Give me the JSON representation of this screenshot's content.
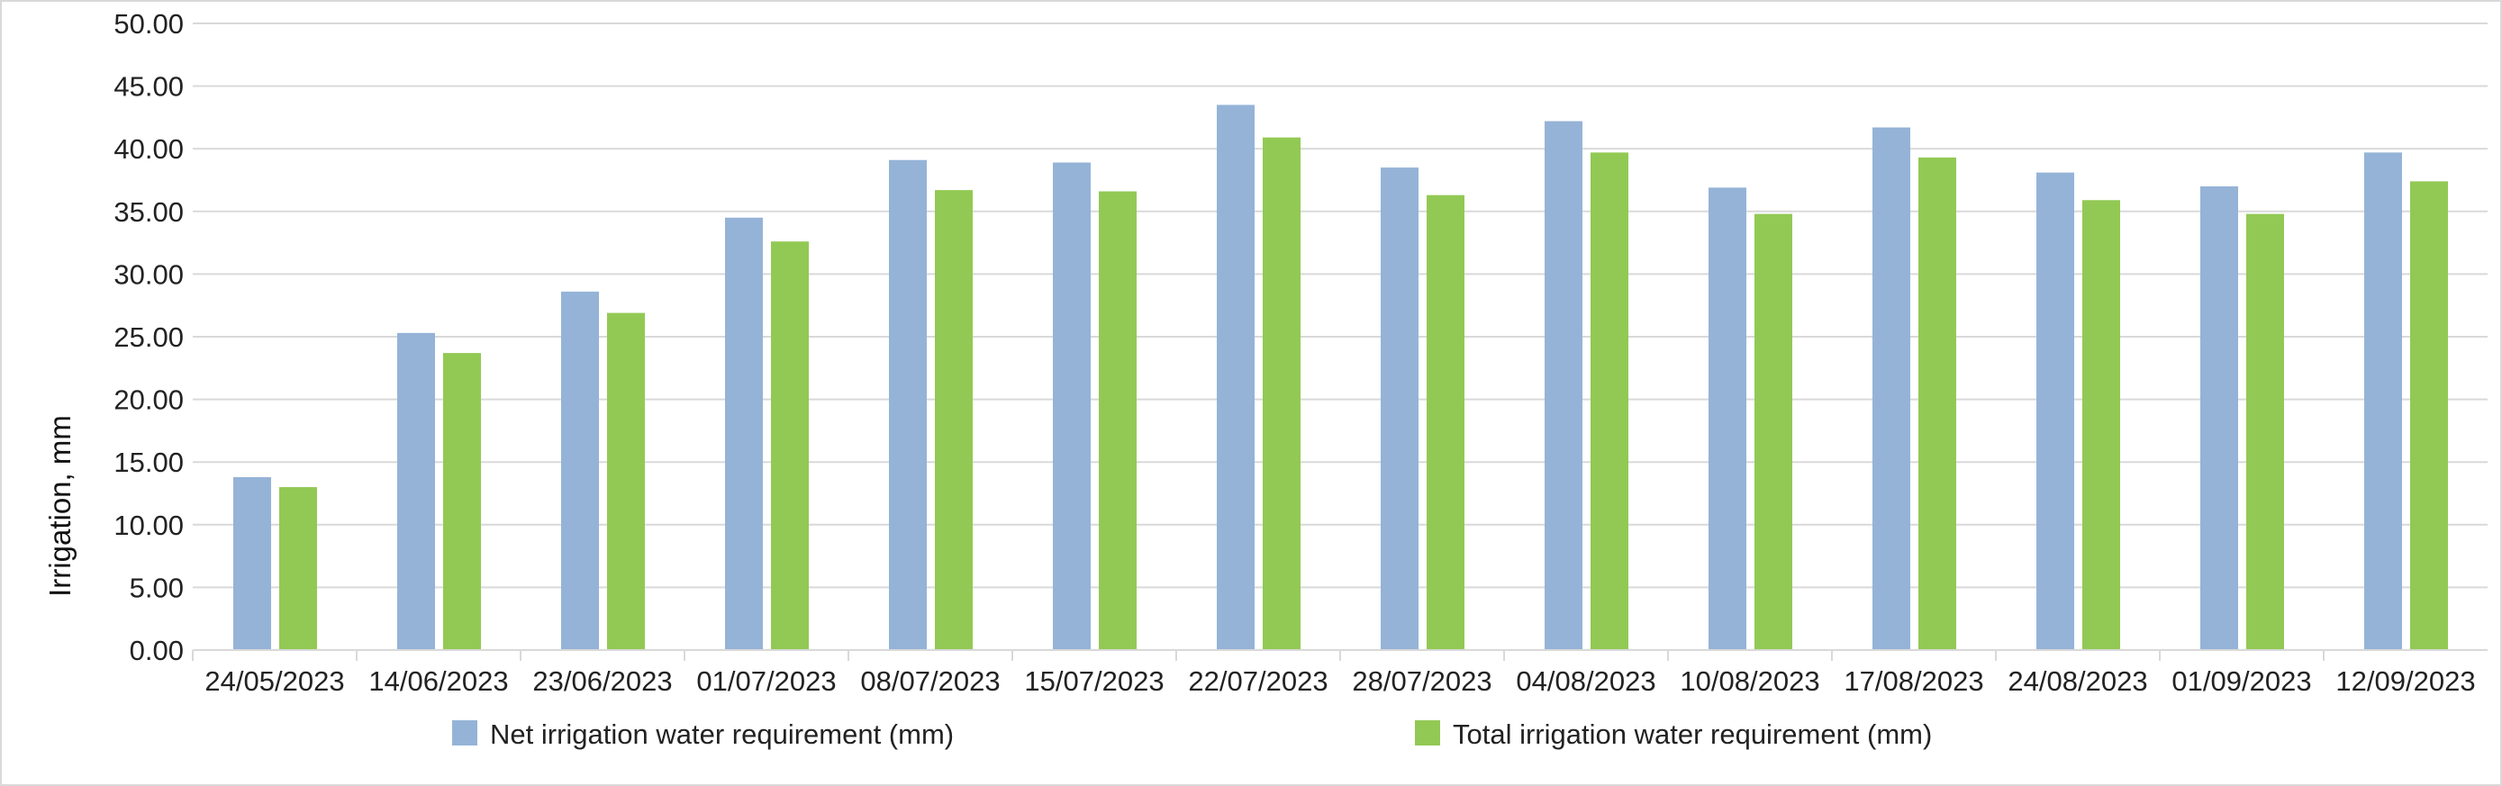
{
  "chart_data": {
    "type": "bar",
    "title": "",
    "xlabel": "",
    "ylabel": "Irrigation, mm",
    "ylim": [
      0,
      50
    ],
    "yticks": [
      "0.00",
      "5.00",
      "10.00",
      "15.00",
      "20.00",
      "25.00",
      "30.00",
      "35.00",
      "40.00",
      "45.00",
      "50.00"
    ],
    "grid": true,
    "legend_placement": "bottom",
    "categories": [
      "24/05/2023",
      "14/06/2023",
      "23/06/2023",
      "01/07/2023",
      "08/07/2023",
      "15/07/2023",
      "22/07/2023",
      "28/07/2023",
      "04/08/2023",
      "10/08/2023",
      "17/08/2023",
      "24/08/2023",
      "01/09/2023",
      "12/09/2023"
    ],
    "series": [
      {
        "name": "Net irrigation water requirement (mm)",
        "color": "#95b3d7",
        "values": [
          13.8,
          25.3,
          28.6,
          34.5,
          39.1,
          38.9,
          43.5,
          38.5,
          42.2,
          36.9,
          41.7,
          38.1,
          37.0,
          39.7
        ]
      },
      {
        "name": "Total irrigation water requirement (mm)",
        "color": "#92c954",
        "values": [
          13.0,
          23.7,
          26.9,
          32.6,
          36.7,
          36.6,
          40.9,
          36.3,
          39.7,
          34.8,
          39.3,
          35.9,
          34.8,
          37.4
        ]
      }
    ]
  }
}
